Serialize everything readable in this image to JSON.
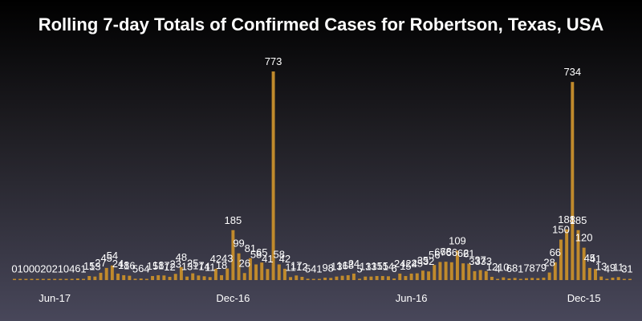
{
  "colors": {
    "bar": "#c08a2c",
    "text": "#ffffff"
  },
  "chart_data": {
    "type": "bar",
    "title": "Rolling 7-day Totals of Confirmed Cases for Robertson, Texas, USA",
    "xlabel": "",
    "ylabel": "",
    "ylim": [
      0,
      800
    ],
    "grid": false,
    "legend": "none",
    "order": "newest-left",
    "xticks": [
      "Jun-17",
      "Dec-16",
      "Jun-16",
      "Dec-15"
    ],
    "values": [
      0,
      1,
      0,
      0,
      0,
      2,
      0,
      2,
      1,
      0,
      4,
      6,
      1,
      15,
      13,
      27,
      45,
      54,
      24,
      18,
      16,
      5,
      6,
      4,
      15,
      18,
      17,
      12,
      23,
      48,
      13,
      25,
      17,
      14,
      11,
      42,
      18,
      43,
      185,
      99,
      26,
      81,
      58,
      65,
      41,
      773,
      58,
      42,
      11,
      17,
      12,
      5,
      4,
      1,
      9,
      8,
      13,
      16,
      18,
      24,
      5,
      13,
      13,
      15,
      15,
      14,
      6,
      24,
      15,
      24,
      25,
      35,
      32,
      56,
      67,
      68,
      66,
      109,
      62,
      61,
      33,
      37,
      33,
      12,
      4,
      10,
      6,
      8,
      1,
      7,
      8,
      7,
      9,
      28,
      66,
      150,
      188,
      734,
      185,
      120,
      45,
      41,
      13,
      4,
      9,
      11,
      3,
      1
    ],
    "tick_indices": [
      7,
      38,
      69,
      99
    ]
  }
}
